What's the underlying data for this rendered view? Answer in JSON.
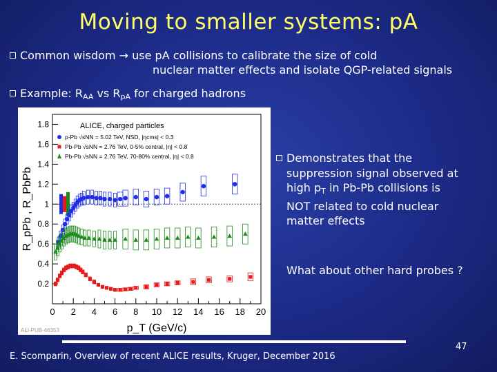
{
  "slide": {
    "title": "Moving to smaller systems: pA",
    "bullets": [
      {
        "prefix": "Common wisdom",
        "arrow": "→",
        "line1": "use pA collisions to calibrate the size of cold",
        "line2": "nuclear matter effects and isolate QGP-related signals"
      },
      {
        "pre": "Example: R",
        "sub1": "AA",
        "mid": " vs R",
        "sub2": "pA",
        "post": " for charged hadrons"
      }
    ],
    "side_bullet": {
      "l1": "Demonstrates that the",
      "l2": "suppression signal observed at",
      "l3_pre": "high p",
      "l3_sub": "T",
      "l3_post": " in Pb-Pb collisions is",
      "l4": "NOT related to cold nuclear",
      "l5": "matter effects"
    },
    "question": "What about other hard probes ?",
    "footer": "E. Scomparin, Overview of recent ALICE results, Kruger, December 2016",
    "page_number": "47"
  },
  "chart_data": {
    "type": "scatter",
    "title": "ALICE, charged particles",
    "xlabel": "p_T (GeV/c)",
    "ylabel": "R_pPb , R_PbPb",
    "xlim": [
      0,
      20
    ],
    "ylim": [
      0,
      1.9
    ],
    "xticks": [
      0,
      2,
      4,
      6,
      8,
      10,
      12,
      14,
      16,
      18,
      20
    ],
    "yticks": [
      0.2,
      0.4,
      0.6,
      0.8,
      1,
      1.2,
      1.4,
      1.6,
      1.8
    ],
    "reference_line": 1,
    "watermark": "ALI-PUB-46353",
    "legend_position": "top-left",
    "series": [
      {
        "name": "p-Pb √sNN = 5.02 TeV, NSD, |ηcms| < 0.3",
        "color": "#1f2ee6",
        "marker": "circle",
        "x": [
          0.6,
          0.8,
          1.0,
          1.2,
          1.4,
          1.6,
          1.8,
          2.0,
          2.2,
          2.4,
          2.6,
          2.8,
          3.0,
          3.4,
          3.8,
          4.2,
          4.6,
          5.0,
          5.5,
          6.0,
          6.5,
          7.0,
          8.0,
          9.0,
          10.0,
          11.0,
          12.5,
          14.5,
          17.5
        ],
        "y": [
          0.62,
          0.68,
          0.74,
          0.8,
          0.85,
          0.89,
          0.93,
          0.96,
          0.99,
          1.02,
          1.04,
          1.05,
          1.06,
          1.07,
          1.07,
          1.06,
          1.06,
          1.05,
          1.05,
          1.04,
          1.05,
          1.06,
          1.07,
          1.05,
          1.07,
          1.08,
          1.12,
          1.18,
          1.2
        ],
        "sys_err": [
          0.05,
          0.05,
          0.05,
          0.05,
          0.05,
          0.06,
          0.06,
          0.06,
          0.06,
          0.06,
          0.06,
          0.06,
          0.07,
          0.07,
          0.07,
          0.07,
          0.07,
          0.07,
          0.07,
          0.07,
          0.07,
          0.08,
          0.08,
          0.08,
          0.08,
          0.08,
          0.09,
          0.1,
          0.1
        ]
      },
      {
        "name": "Pb-Pb √sNN = 2.76 TeV, 0-5% central, |η| < 0.8",
        "color": "#e61a1a",
        "marker": "square",
        "x": [
          0.3,
          0.5,
          0.7,
          0.9,
          1.1,
          1.3,
          1.5,
          1.7,
          1.9,
          2.1,
          2.3,
          2.5,
          2.7,
          2.9,
          3.2,
          3.6,
          4.0,
          4.4,
          4.8,
          5.2,
          5.6,
          6.0,
          6.5,
          7.0,
          7.5,
          8.0,
          9.0,
          10.0,
          11.0,
          12.0,
          13.5,
          15.0,
          17.0,
          19.0
        ],
        "y": [
          0.2,
          0.24,
          0.28,
          0.31,
          0.34,
          0.36,
          0.37,
          0.38,
          0.38,
          0.38,
          0.37,
          0.36,
          0.34,
          0.32,
          0.29,
          0.25,
          0.22,
          0.19,
          0.17,
          0.16,
          0.15,
          0.14,
          0.14,
          0.145,
          0.15,
          0.16,
          0.17,
          0.19,
          0.2,
          0.21,
          0.22,
          0.24,
          0.25,
          0.27
        ],
        "sys_err": [
          0.02,
          0.02,
          0.02,
          0.02,
          0.02,
          0.02,
          0.02,
          0.02,
          0.02,
          0.02,
          0.02,
          0.02,
          0.02,
          0.02,
          0.02,
          0.02,
          0.02,
          0.015,
          0.015,
          0.015,
          0.015,
          0.015,
          0.015,
          0.015,
          0.015,
          0.015,
          0.02,
          0.02,
          0.02,
          0.02,
          0.03,
          0.03,
          0.03,
          0.04
        ]
      },
      {
        "name": "Pb-Pb √sNN = 2.76 TeV, 70-80% central, |η| < 0.8",
        "color": "#1a8a1a",
        "marker": "triangle",
        "x": [
          0.3,
          0.5,
          0.7,
          0.9,
          1.1,
          1.3,
          1.5,
          1.7,
          1.9,
          2.1,
          2.3,
          2.5,
          2.8,
          3.1,
          3.5,
          4.0,
          4.5,
          5.0,
          5.5,
          6.0,
          7.0,
          8.0,
          9.0,
          10.0,
          11.0,
          12.0,
          13.0,
          14.0,
          15.5,
          17.0,
          18.5
        ],
        "y": [
          0.52,
          0.56,
          0.6,
          0.63,
          0.66,
          0.68,
          0.69,
          0.7,
          0.7,
          0.7,
          0.69,
          0.68,
          0.67,
          0.66,
          0.66,
          0.65,
          0.65,
          0.64,
          0.64,
          0.64,
          0.65,
          0.64,
          0.64,
          0.65,
          0.66,
          0.66,
          0.67,
          0.66,
          0.67,
          0.68,
          0.7
        ],
        "sys_err": [
          0.08,
          0.08,
          0.08,
          0.08,
          0.08,
          0.08,
          0.08,
          0.08,
          0.08,
          0.08,
          0.08,
          0.08,
          0.08,
          0.08,
          0.08,
          0.08,
          0.09,
          0.09,
          0.09,
          0.09,
          0.1,
          0.1,
          0.1,
          0.1,
          0.1,
          0.1,
          0.1,
          0.1,
          0.1,
          0.1,
          0.1
        ]
      }
    ]
  }
}
